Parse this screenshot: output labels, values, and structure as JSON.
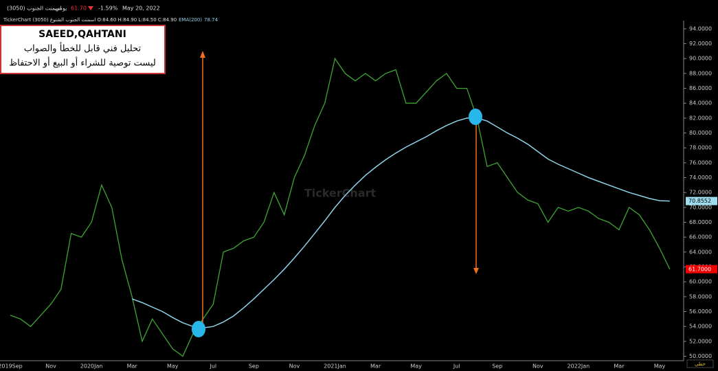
{
  "chart_data": {
    "type": "line",
    "header": {
      "symbol": "اسمنت الجنوب (3050)",
      "period": "يومي",
      "price": "61.70",
      "change": "-1.59%",
      "date": "May 20, 2022",
      "ohlc": "TickerChart اسمنت الجنوب الشنوع (3050) O:84.60 H:84.90 L:84.50 C:84.90",
      "ema": "EMA(200)",
      "ema_value": "78.74"
    },
    "annotation": {
      "author": "SAEED,QAHTANI",
      "line1": "تحليل فني قابل للخطأ والصواب",
      "line2": "ليست توصية للشراء أو البيع أو الاحتفاظ"
    },
    "watermark": "TickerChart",
    "chart_style": "خطي",
    "categories": [
      "2019Sep",
      null,
      null,
      null,
      "Nov",
      null,
      null,
      null,
      "2020Jan",
      null,
      null,
      null,
      "Mar",
      null,
      null,
      null,
      "May",
      null,
      null,
      null,
      "Jul",
      null,
      null,
      null,
      "Sep",
      null,
      null,
      null,
      "Nov",
      null,
      null,
      null,
      "2021Jan",
      null,
      null,
      null,
      "Mar",
      null,
      null,
      null,
      "May",
      null,
      null,
      null,
      "Jul",
      null,
      null,
      null,
      "Sep",
      null,
      null,
      null,
      "Nov",
      null,
      null,
      null,
      "2022Jan",
      null,
      null,
      null,
      "Mar",
      null,
      null,
      null,
      "May",
      null
    ],
    "series": [
      {
        "color": "#3fa535",
        "values": [
          55.5,
          55,
          54,
          55.5,
          57,
          59,
          66.5,
          66,
          68,
          73,
          70,
          63,
          58,
          52,
          55,
          53,
          51,
          50,
          53,
          55,
          57,
          64,
          64.5,
          65.5,
          66,
          68,
          72,
          69,
          74,
          77,
          81,
          84,
          90,
          88,
          87,
          88,
          87,
          88,
          88.5,
          84,
          84,
          85.5,
          87,
          88,
          86,
          86,
          82,
          75.5,
          76,
          74,
          72,
          71,
          70.5,
          68,
          70,
          69.5,
          70,
          69.5,
          68.5,
          68,
          67,
          70,
          69,
          67,
          64.5,
          61.7
        ],
        "value_labels": [
          null,
          null,
          null,
          null,
          null,
          null,
          null,
          null,
          null,
          null,
          null,
          null,
          null,
          null,
          null,
          null,
          null,
          null,
          null,
          null,
          null,
          null,
          null,
          null,
          null,
          null,
          null,
          null,
          null,
          null,
          null,
          null,
          null,
          null,
          null,
          null,
          null,
          null,
          null,
          null,
          null,
          null,
          null,
          null,
          null,
          null,
          null,
          null,
          null,
          null,
          null,
          null,
          null,
          null,
          null,
          null,
          null,
          null,
          null,
          null,
          null,
          null,
          null,
          null,
          null,
          "61.7000"
        ]
      },
      {
        "color": "#8fd3e8",
        "values": [
          null,
          null,
          null,
          null,
          null,
          null,
          null,
          null,
          null,
          null,
          null,
          null,
          57.7,
          57.2,
          56.6,
          56,
          55.2,
          54.5,
          54,
          53.8,
          54,
          54.6,
          55.4,
          56.5,
          57.7,
          59,
          60.3,
          61.7,
          63.2,
          64.8,
          66.5,
          68.2,
          70,
          71.6,
          73,
          74.3,
          75.4,
          76.4,
          77.3,
          78.1,
          78.8,
          79.5,
          80.3,
          81,
          81.6,
          82,
          82,
          81.6,
          80.8,
          80,
          79.3,
          78.5,
          77.5,
          76.5,
          75.8,
          75.2,
          74.6,
          74,
          73.5,
          73,
          72.5,
          72,
          71.6,
          71.2,
          70.9,
          70.8552
        ],
        "value_labels": [
          null,
          null,
          null,
          null,
          null,
          null,
          null,
          null,
          null,
          null,
          null,
          null,
          null,
          null,
          null,
          null,
          null,
          null,
          null,
          null,
          null,
          null,
          null,
          null,
          null,
          null,
          null,
          null,
          null,
          null,
          null,
          null,
          null,
          null,
          null,
          null,
          null,
          null,
          null,
          null,
          null,
          null,
          null,
          null,
          null,
          null,
          null,
          null,
          null,
          null,
          null,
          null,
          null,
          null,
          null,
          null,
          null,
          null,
          null,
          null,
          null,
          null,
          null,
          null,
          null,
          "70.8552"
        ]
      }
    ],
    "ylim": [
      49.4,
      95.1
    ],
    "yticks": [
      {
        "value": 50,
        "label": "50.0000"
      },
      {
        "value": 52,
        "label": "52.0000"
      },
      {
        "value": 54,
        "label": "54.0000"
      },
      {
        "value": 56,
        "label": "56.0000"
      },
      {
        "value": 58,
        "label": "58.0000"
      },
      {
        "value": 60,
        "label": "60.0000"
      },
      {
        "value": 62,
        "label": "62.0000"
      },
      {
        "value": 64,
        "label": "64.0000"
      },
      {
        "value": 66,
        "label": "66.0000"
      },
      {
        "value": 68,
        "label": "68.0000"
      },
      {
        "value": 70,
        "label": "70.0000"
      },
      {
        "value": 72,
        "label": "72.0000"
      },
      {
        "value": 74,
        "label": "74.0000"
      },
      {
        "value": 76,
        "label": "76.0000"
      },
      {
        "value": 78,
        "label": "78.0000"
      },
      {
        "value": 80,
        "label": "80.0000"
      },
      {
        "value": 82,
        "label": "82.0000"
      },
      {
        "value": 84,
        "label": "84.0000"
      },
      {
        "value": 86,
        "label": "86.0000"
      },
      {
        "value": 88,
        "label": "88.0000"
      },
      {
        "value": 90,
        "label": "90.0000"
      },
      {
        "value": 92,
        "label": "92.0000"
      },
      {
        "value": 94,
        "label": "94.0000"
      }
    ]
  }
}
